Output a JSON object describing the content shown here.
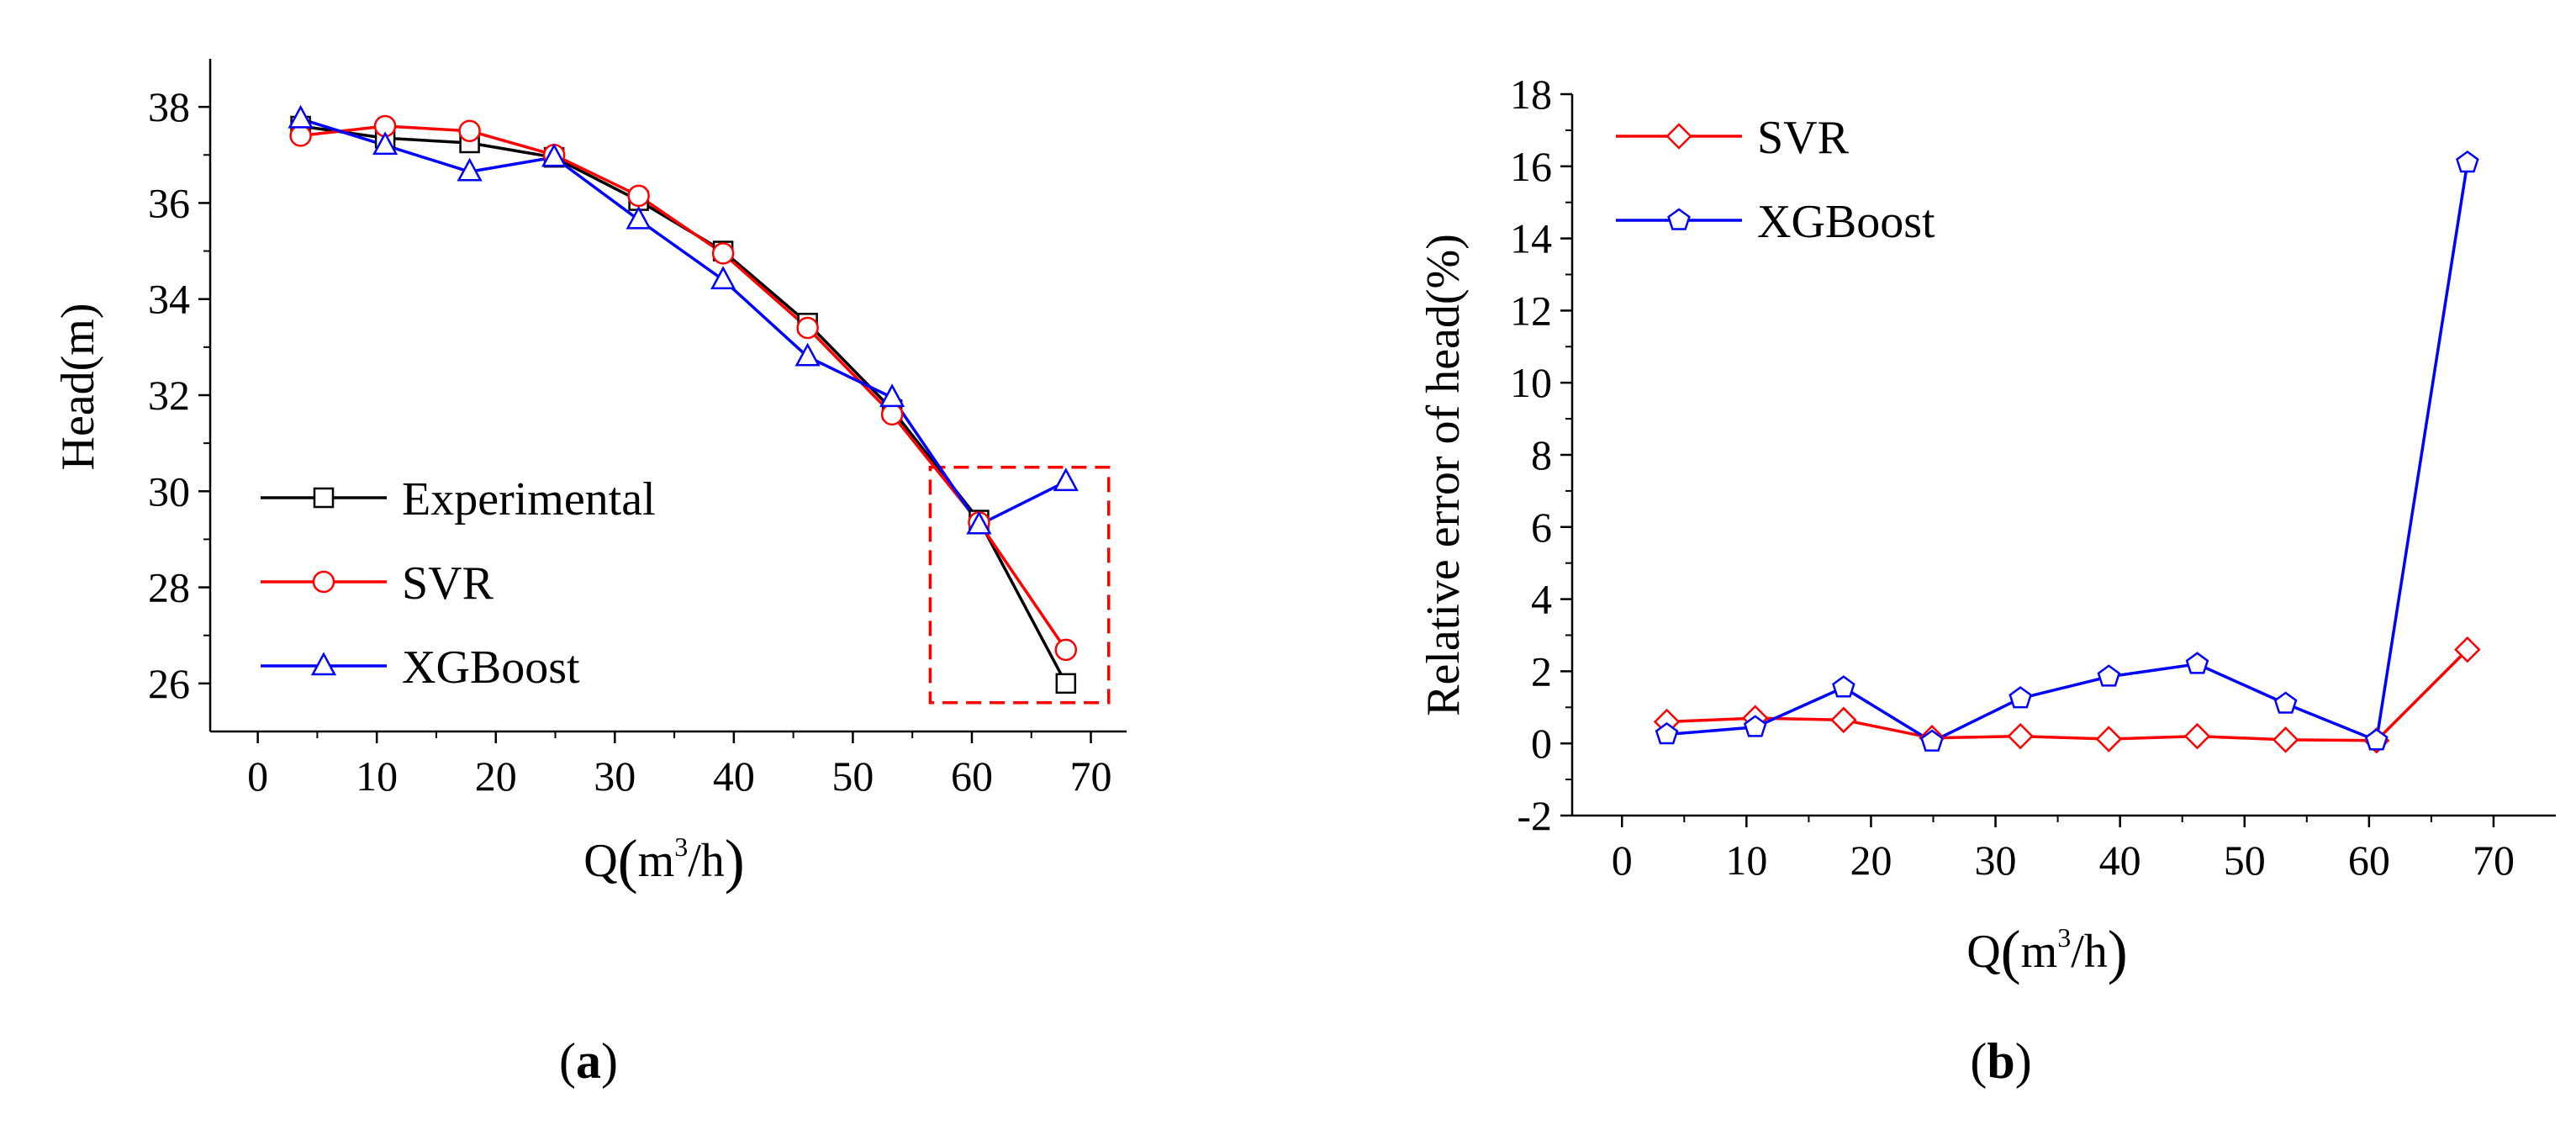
{
  "panels": [
    {
      "label_open": "(",
      "label_letter": "a",
      "label_close": ")"
    },
    {
      "label_open": "(",
      "label_letter": "b",
      "label_close": ")"
    }
  ],
  "chart_data": [
    {
      "type": "line",
      "panel": "a",
      "title": "",
      "xlabel": "Q(m³/h)",
      "xlabel_parts": {
        "open": "(",
        "base": "m",
        "sup": "3",
        "rest": "/h",
        "close": ")",
        "prefix": "Q"
      },
      "ylabel": "Head(m)",
      "xlim": [
        -4,
        73
      ],
      "ylim": [
        25,
        39
      ],
      "xticks": [
        0,
        10,
        20,
        30,
        40,
        50,
        60,
        70
      ],
      "yticks": [
        26,
        28,
        30,
        32,
        34,
        36,
        38
      ],
      "legend_position": "lower-left",
      "series": [
        {
          "name": "Experimental",
          "color": "#000000",
          "marker": "square",
          "x": [
            3.6,
            10.7,
            17.8,
            24.9,
            32.0,
            39.1,
            46.2,
            53.3,
            60.6,
            67.9
          ],
          "values": [
            37.6,
            37.35,
            37.25,
            36.95,
            36.05,
            35.0,
            33.5,
            31.7,
            29.4,
            26.0
          ]
        },
        {
          "name": "SVR",
          "color": "#ff0000",
          "marker": "circle",
          "x": [
            3.6,
            10.7,
            17.8,
            24.9,
            32.0,
            39.1,
            46.2,
            53.3,
            60.6,
            67.9
          ],
          "values": [
            37.4,
            37.6,
            37.5,
            37.0,
            36.15,
            34.95,
            33.4,
            31.6,
            29.35,
            26.7
          ]
        },
        {
          "name": "XGBoost",
          "color": "#0000ff",
          "marker": "triangle",
          "x": [
            3.6,
            10.7,
            17.8,
            24.9,
            32.0,
            39.1,
            46.2,
            53.3,
            60.6,
            67.9
          ],
          "values": [
            37.75,
            37.2,
            36.65,
            36.95,
            35.65,
            34.4,
            32.8,
            31.95,
            29.3,
            30.2
          ]
        }
      ],
      "annotations": [
        {
          "type": "dashed-rectangle",
          "color": "#ff0000",
          "x_range": [
            56.5,
            71.5
          ],
          "y_range": [
            25.6,
            30.5
          ]
        }
      ]
    },
    {
      "type": "line",
      "panel": "b",
      "title": "",
      "xlabel": "Q(m³/h)",
      "xlabel_parts": {
        "open": "(",
        "base": "m",
        "sup": "3",
        "rest": "/h",
        "close": ")",
        "prefix": "Q"
      },
      "ylabel": "Relative error of head(%)",
      "xlim": [
        -4,
        75
      ],
      "ylim": [
        -2,
        18
      ],
      "xticks": [
        0,
        10,
        20,
        30,
        40,
        50,
        60,
        70
      ],
      "yticks": [
        -2,
        0,
        2,
        4,
        6,
        8,
        10,
        12,
        14,
        16,
        18
      ],
      "legend_position": "top-left",
      "series": [
        {
          "name": "SVR",
          "color": "#ff0000",
          "marker": "diamond",
          "x": [
            3.6,
            10.7,
            17.8,
            24.9,
            32.0,
            39.1,
            46.2,
            53.3,
            60.6,
            67.9
          ],
          "values": [
            0.6,
            0.7,
            0.65,
            0.15,
            0.2,
            0.12,
            0.2,
            0.1,
            0.08,
            2.6
          ]
        },
        {
          "name": "XGBoost",
          "color": "#0000ff",
          "marker": "pentagon",
          "x": [
            3.6,
            10.7,
            17.8,
            24.9,
            32.0,
            39.1,
            46.2,
            53.3,
            60.6,
            67.9
          ],
          "values": [
            0.25,
            0.45,
            1.55,
            0.05,
            1.25,
            1.85,
            2.2,
            1.1,
            0.08,
            16.1
          ]
        }
      ]
    }
  ]
}
